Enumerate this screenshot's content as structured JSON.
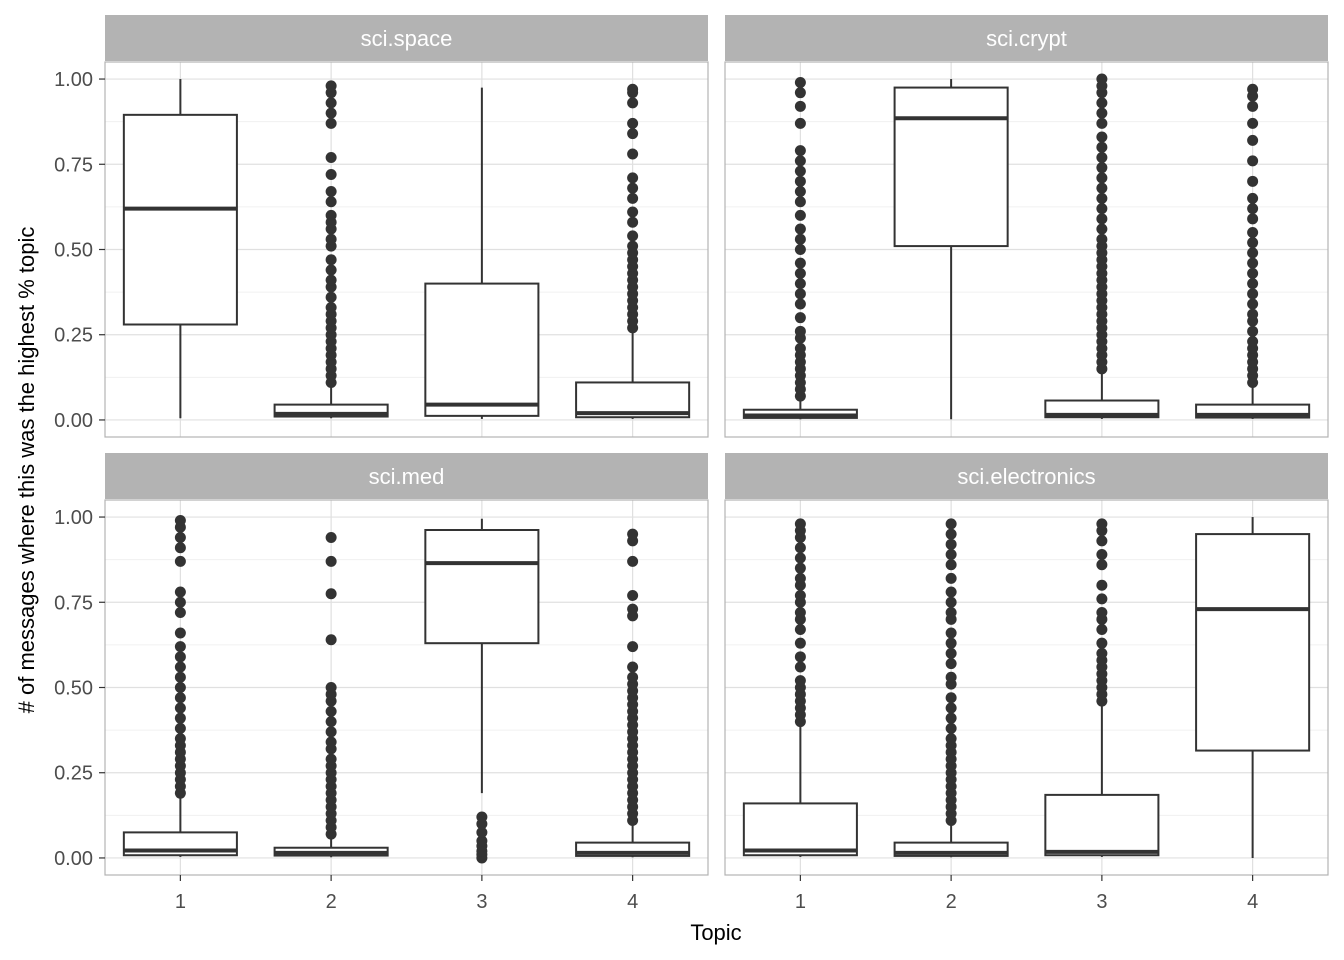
{
  "colors": {
    "box_line": "#333333",
    "strip_bg": "#b3b3b3",
    "strip_text": "#ffffff",
    "grid_major": "#e0e0e0",
    "grid_minor": "#f0f0f0",
    "panel_border": "#b3b3b3",
    "tick_text": "#4d4d4d"
  },
  "chart_data": {
    "type": "boxplot",
    "layout": "facet 2x2",
    "xlabel": "Topic",
    "ylabel": "# of messages where this was the highest % topic",
    "x_categories": [
      "1",
      "2",
      "3",
      "4"
    ],
    "ylim": [
      -0.05,
      1.05
    ],
    "y_ticks": [
      "0.00",
      "0.25",
      "0.50",
      "0.75",
      "1.00"
    ],
    "grid": true,
    "panels": [
      {
        "title": "sci.space",
        "boxes": [
          {
            "topic": "1",
            "min": 0.005,
            "q1": 0.28,
            "median": 0.62,
            "q3": 0.895,
            "max": 1.0,
            "outliers": []
          },
          {
            "topic": "2",
            "min": 0.005,
            "q1": 0.01,
            "median": 0.018,
            "q3": 0.045,
            "max": 0.1,
            "outliers": [
              0.11,
              0.13,
              0.15,
              0.17,
              0.19,
              0.21,
              0.23,
              0.25,
              0.27,
              0.29,
              0.31,
              0.33,
              0.36,
              0.39,
              0.41,
              0.44,
              0.47,
              0.51,
              0.53,
              0.56,
              0.58,
              0.6,
              0.64,
              0.67,
              0.72,
              0.77,
              0.87,
              0.9,
              0.93,
              0.96,
              0.98
            ]
          },
          {
            "topic": "3",
            "min": 0.003,
            "q1": 0.012,
            "median": 0.045,
            "q3": 0.4,
            "max": 0.975,
            "outliers": []
          },
          {
            "topic": "4",
            "min": 0.003,
            "q1": 0.008,
            "median": 0.02,
            "q3": 0.11,
            "max": 0.26,
            "outliers": [
              0.27,
              0.29,
              0.31,
              0.33,
              0.35,
              0.37,
              0.39,
              0.41,
              0.43,
              0.45,
              0.47,
              0.49,
              0.51,
              0.54,
              0.58,
              0.61,
              0.65,
              0.68,
              0.71,
              0.78,
              0.84,
              0.87,
              0.93,
              0.96,
              0.97
            ]
          }
        ]
      },
      {
        "title": "sci.crypt",
        "boxes": [
          {
            "topic": "1",
            "min": 0.002,
            "q1": 0.006,
            "median": 0.013,
            "q3": 0.03,
            "max": 0.06,
            "outliers": [
              0.07,
              0.09,
              0.11,
              0.13,
              0.15,
              0.17,
              0.19,
              0.21,
              0.24,
              0.26,
              0.3,
              0.34,
              0.37,
              0.4,
              0.43,
              0.46,
              0.5,
              0.53,
              0.56,
              0.6,
              0.64,
              0.67,
              0.7,
              0.73,
              0.76,
              0.79,
              0.87,
              0.92,
              0.96,
              0.99
            ]
          },
          {
            "topic": "2",
            "min": 0.002,
            "q1": 0.51,
            "median": 0.885,
            "q3": 0.975,
            "max": 1.0,
            "outliers": []
          },
          {
            "topic": "3",
            "min": 0.003,
            "q1": 0.008,
            "median": 0.015,
            "q3": 0.057,
            "max": 0.14,
            "outliers": [
              0.15,
              0.17,
              0.19,
              0.21,
              0.23,
              0.25,
              0.27,
              0.29,
              0.31,
              0.33,
              0.35,
              0.37,
              0.39,
              0.41,
              0.43,
              0.45,
              0.47,
              0.49,
              0.51,
              0.53,
              0.56,
              0.59,
              0.62,
              0.65,
              0.68,
              0.71,
              0.74,
              0.77,
              0.8,
              0.83,
              0.87,
              0.9,
              0.93,
              0.96,
              0.98,
              1.0
            ]
          },
          {
            "topic": "4",
            "min": 0.003,
            "q1": 0.007,
            "median": 0.015,
            "q3": 0.045,
            "max": 0.1,
            "outliers": [
              0.11,
              0.13,
              0.15,
              0.17,
              0.19,
              0.21,
              0.23,
              0.26,
              0.29,
              0.31,
              0.34,
              0.37,
              0.4,
              0.43,
              0.46,
              0.49,
              0.52,
              0.55,
              0.59,
              0.62,
              0.65,
              0.7,
              0.76,
              0.82,
              0.87,
              0.92,
              0.95,
              0.97
            ]
          }
        ]
      },
      {
        "title": "sci.med",
        "boxes": [
          {
            "topic": "1",
            "min": 0.003,
            "q1": 0.008,
            "median": 0.022,
            "q3": 0.075,
            "max": 0.18,
            "outliers": [
              0.19,
              0.21,
              0.23,
              0.25,
              0.27,
              0.29,
              0.31,
              0.33,
              0.35,
              0.38,
              0.41,
              0.44,
              0.47,
              0.5,
              0.53,
              0.56,
              0.59,
              0.62,
              0.66,
              0.72,
              0.75,
              0.78,
              0.87,
              0.91,
              0.94,
              0.97,
              0.99
            ]
          },
          {
            "topic": "2",
            "min": 0.002,
            "q1": 0.007,
            "median": 0.015,
            "q3": 0.03,
            "max": 0.06,
            "outliers": [
              0.07,
              0.09,
              0.11,
              0.13,
              0.15,
              0.17,
              0.19,
              0.21,
              0.23,
              0.25,
              0.27,
              0.29,
              0.32,
              0.34,
              0.37,
              0.4,
              0.43,
              0.46,
              0.48,
              0.5,
              0.64,
              0.775,
              0.87,
              0.94
            ]
          },
          {
            "topic": "3",
            "min": 0.19,
            "q1": 0.63,
            "median": 0.865,
            "q3": 0.962,
            "max": 0.995,
            "outliers": [
              0.0,
              0.01,
              0.02,
              0.035,
              0.05,
              0.075,
              0.1,
              0.12
            ]
          },
          {
            "topic": "4",
            "min": 0.002,
            "q1": 0.006,
            "median": 0.015,
            "q3": 0.045,
            "max": 0.1,
            "outliers": [
              0.11,
              0.13,
              0.15,
              0.17,
              0.19,
              0.21,
              0.23,
              0.25,
              0.27,
              0.29,
              0.31,
              0.33,
              0.35,
              0.37,
              0.39,
              0.41,
              0.43,
              0.45,
              0.47,
              0.49,
              0.51,
              0.53,
              0.56,
              0.62,
              0.71,
              0.73,
              0.77,
              0.87,
              0.93,
              0.95
            ]
          }
        ]
      },
      {
        "title": "sci.electronics",
        "boxes": [
          {
            "topic": "1",
            "min": 0.003,
            "q1": 0.008,
            "median": 0.022,
            "q3": 0.16,
            "max": 0.39,
            "outliers": [
              0.4,
              0.42,
              0.44,
              0.46,
              0.48,
              0.5,
              0.52,
              0.56,
              0.59,
              0.63,
              0.67,
              0.7,
              0.72,
              0.75,
              0.77,
              0.8,
              0.82,
              0.85,
              0.88,
              0.91,
              0.94,
              0.96,
              0.98
            ]
          },
          {
            "topic": "2",
            "min": 0.002,
            "q1": 0.006,
            "median": 0.015,
            "q3": 0.045,
            "max": 0.1,
            "outliers": [
              0.11,
              0.13,
              0.15,
              0.17,
              0.19,
              0.21,
              0.23,
              0.25,
              0.27,
              0.29,
              0.31,
              0.33,
              0.35,
              0.38,
              0.41,
              0.44,
              0.47,
              0.51,
              0.53,
              0.57,
              0.6,
              0.63,
              0.66,
              0.7,
              0.72,
              0.75,
              0.78,
              0.82,
              0.86,
              0.89,
              0.92,
              0.95,
              0.98
            ]
          },
          {
            "topic": "3",
            "min": 0.003,
            "q1": 0.008,
            "median": 0.018,
            "q3": 0.185,
            "max": 0.45,
            "outliers": [
              0.46,
              0.48,
              0.5,
              0.52,
              0.54,
              0.56,
              0.58,
              0.6,
              0.63,
              0.67,
              0.7,
              0.72,
              0.76,
              0.8,
              0.86,
              0.89,
              0.93,
              0.96,
              0.98
            ]
          },
          {
            "topic": "4",
            "min": 0.0,
            "q1": 0.315,
            "median": 0.73,
            "q3": 0.95,
            "max": 1.0,
            "outliers": []
          }
        ]
      }
    ]
  }
}
